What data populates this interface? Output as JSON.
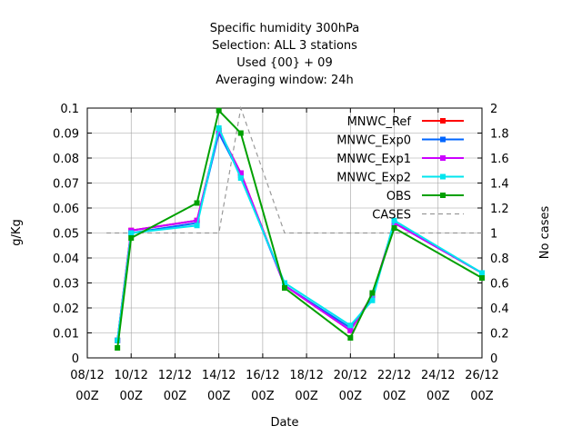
{
  "chart_data": {
    "type": "line",
    "title_lines": [
      "Specific humidity 300hPa",
      "Selection: ALL      3 stations",
      "Used {00} + 09",
      "Averaging window: 24h"
    ],
    "xlabel": "Date",
    "ylabel": "g/Kg",
    "y2label": "No cases",
    "x_unit": "days",
    "xlim": [
      8,
      26
    ],
    "ylim": [
      0,
      0.1
    ],
    "y2lim": [
      0,
      2
    ],
    "x_ticks": [
      {
        "x": 8,
        "line1": "08/12",
        "line2": "00Z"
      },
      {
        "x": 10,
        "line1": "10/12",
        "line2": "00Z"
      },
      {
        "x": 12,
        "line1": "12/12",
        "line2": "00Z"
      },
      {
        "x": 14,
        "line1": "14/12",
        "line2": "00Z"
      },
      {
        "x": 16,
        "line1": "16/12",
        "line2": "00Z"
      },
      {
        "x": 18,
        "line1": "18/12",
        "line2": "00Z"
      },
      {
        "x": 20,
        "line1": "20/12",
        "line2": "00Z"
      },
      {
        "x": 22,
        "line1": "22/12",
        "line2": "00Z"
      },
      {
        "x": 24,
        "line1": "24/12",
        "line2": "00Z"
      },
      {
        "x": 26,
        "line1": "26/12",
        "line2": "00Z"
      }
    ],
    "y_ticks": [
      "0",
      "0.01",
      "0.02",
      "0.03",
      "0.04",
      "0.05",
      "0.06",
      "0.07",
      "0.08",
      "0.09",
      "0.1"
    ],
    "y_tick_values": [
      0,
      0.01,
      0.02,
      0.03,
      0.04,
      0.05,
      0.06,
      0.07,
      0.08,
      0.09,
      0.1
    ],
    "y2_ticks": [
      "0",
      "0.2",
      "0.4",
      "0.6",
      "0.8",
      "1",
      "1.2",
      "1.4",
      "1.6",
      "1.8",
      "2"
    ],
    "y2_tick_values": [
      0,
      0.2,
      0.4,
      0.6,
      0.8,
      1,
      1.2,
      1.4,
      1.6,
      1.8,
      2
    ],
    "legend_position": "top-right",
    "series": [
      {
        "name": "MNWC_Ref",
        "color": "#ff0000",
        "axis": "y",
        "x": [
          9.375,
          10.0,
          13.0,
          14.0,
          15.0,
          17.0,
          20.0,
          21.0,
          22.0,
          26.0
        ],
        "y": [
          0.007,
          0.051,
          0.055,
          0.091,
          0.074,
          0.029,
          0.011,
          0.025,
          0.054,
          0.034
        ]
      },
      {
        "name": "MNWC_Exp0",
        "color": "#0066ff",
        "axis": "y",
        "x": [
          9.375,
          10.0,
          13.0,
          14.0,
          15.0,
          17.0,
          20.0,
          21.0,
          22.0,
          26.0
        ],
        "y": [
          0.007,
          0.05,
          0.054,
          0.09,
          0.073,
          0.029,
          0.012,
          0.024,
          0.054,
          0.034
        ]
      },
      {
        "name": "MNWC_Exp1",
        "color": "#cc00ff",
        "axis": "y",
        "x": [
          9.375,
          10.0,
          13.0,
          14.0,
          15.0,
          17.0,
          20.0,
          21.0,
          22.0,
          26.0
        ],
        "y": [
          0.007,
          0.051,
          0.055,
          0.091,
          0.074,
          0.029,
          0.011,
          0.025,
          0.054,
          0.034
        ]
      },
      {
        "name": "MNWC_Exp2",
        "color": "#00e5ee",
        "axis": "y",
        "x": [
          9.375,
          10.0,
          13.0,
          14.0,
          15.0,
          17.0,
          20.0,
          21.0,
          22.0,
          26.0
        ],
        "y": [
          0.007,
          0.05,
          0.053,
          0.092,
          0.072,
          0.03,
          0.013,
          0.023,
          0.055,
          0.034
        ]
      },
      {
        "name": "OBS",
        "color": "#00a000",
        "axis": "y",
        "x": [
          9.375,
          10.0,
          13.0,
          14.0,
          15.0,
          17.0,
          20.0,
          21.0,
          22.0,
          26.0
        ],
        "y": [
          0.004,
          0.048,
          0.062,
          0.099,
          0.09,
          0.028,
          0.008,
          0.026,
          0.052,
          0.032
        ]
      },
      {
        "name": "CASES",
        "color": "#999999",
        "axis": "y2",
        "dashed": true,
        "x": [
          8.875,
          13.375,
          14.0,
          15.0,
          17.0,
          26.0
        ],
        "y": [
          1,
          1,
          1,
          2,
          1,
          1
        ]
      }
    ]
  }
}
